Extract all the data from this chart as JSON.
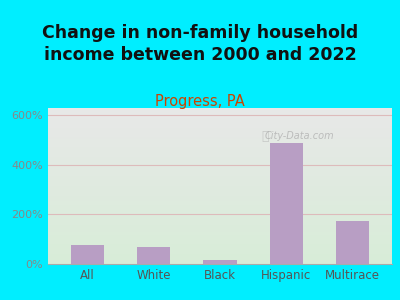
{
  "title": "Change in non-family household\nincome between 2000 and 2022",
  "subtitle": "Progress, PA",
  "categories": [
    "All",
    "White",
    "Black",
    "Hispanic",
    "Multirace"
  ],
  "values": [
    75,
    70,
    15,
    490,
    175
  ],
  "bar_color": "#b89ec4",
  "title_fontsize": 12.5,
  "subtitle_fontsize": 10.5,
  "subtitle_color": "#cc4400",
  "title_color": "#111111",
  "ylabel_color": "#888888",
  "xlabel_color": "#555555",
  "background_outer": "#00eeff",
  "ylim": [
    0,
    630
  ],
  "yticks": [
    0,
    200,
    400,
    600
  ],
  "ytick_labels": [
    "0%",
    "200%",
    "400%",
    "600%"
  ],
  "grid_color": "#ddbbbb",
  "watermark": "City-Data.com",
  "plot_bg_top": "#e8e8e8",
  "plot_bg_bottom": "#d8edd8"
}
